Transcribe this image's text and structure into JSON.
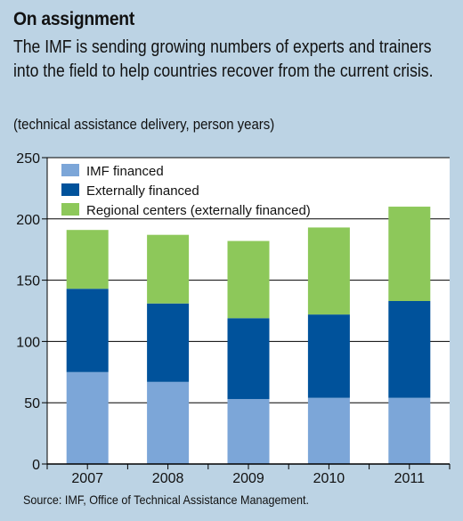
{
  "header": {
    "title": "On assignment",
    "subtitle": "The IMF is sending growing numbers of experts and trainers into the field to help countries recover from the current crisis.",
    "units": "(technical assistance delivery, person years)"
  },
  "source": "Source: IMF, Office of Technical Assistance Management.",
  "colors": {
    "background": "#bcd3e4",
    "plot_area": "#ffffff",
    "imf_financed": "#7ca6d8",
    "externally_financed": "#00529b",
    "regional_centers": "#8dc85a"
  },
  "chart_data": {
    "type": "bar",
    "stacked": true,
    "categories": [
      "2007",
      "2008",
      "2009",
      "2010",
      "2011"
    ],
    "series": [
      {
        "name": "IMF financed",
        "values": [
          75,
          67,
          53,
          54,
          54
        ]
      },
      {
        "name": "Externally financed",
        "values": [
          68,
          64,
          66,
          68,
          79
        ]
      },
      {
        "name": "Regional centers (externally financed)",
        "values": [
          48,
          56,
          63,
          71,
          77
        ]
      }
    ],
    "ylim": [
      0,
      250
    ],
    "yticks": [
      "0",
      "50",
      "100",
      "150",
      "200",
      "250"
    ],
    "grid": true,
    "legend": "top-left"
  }
}
